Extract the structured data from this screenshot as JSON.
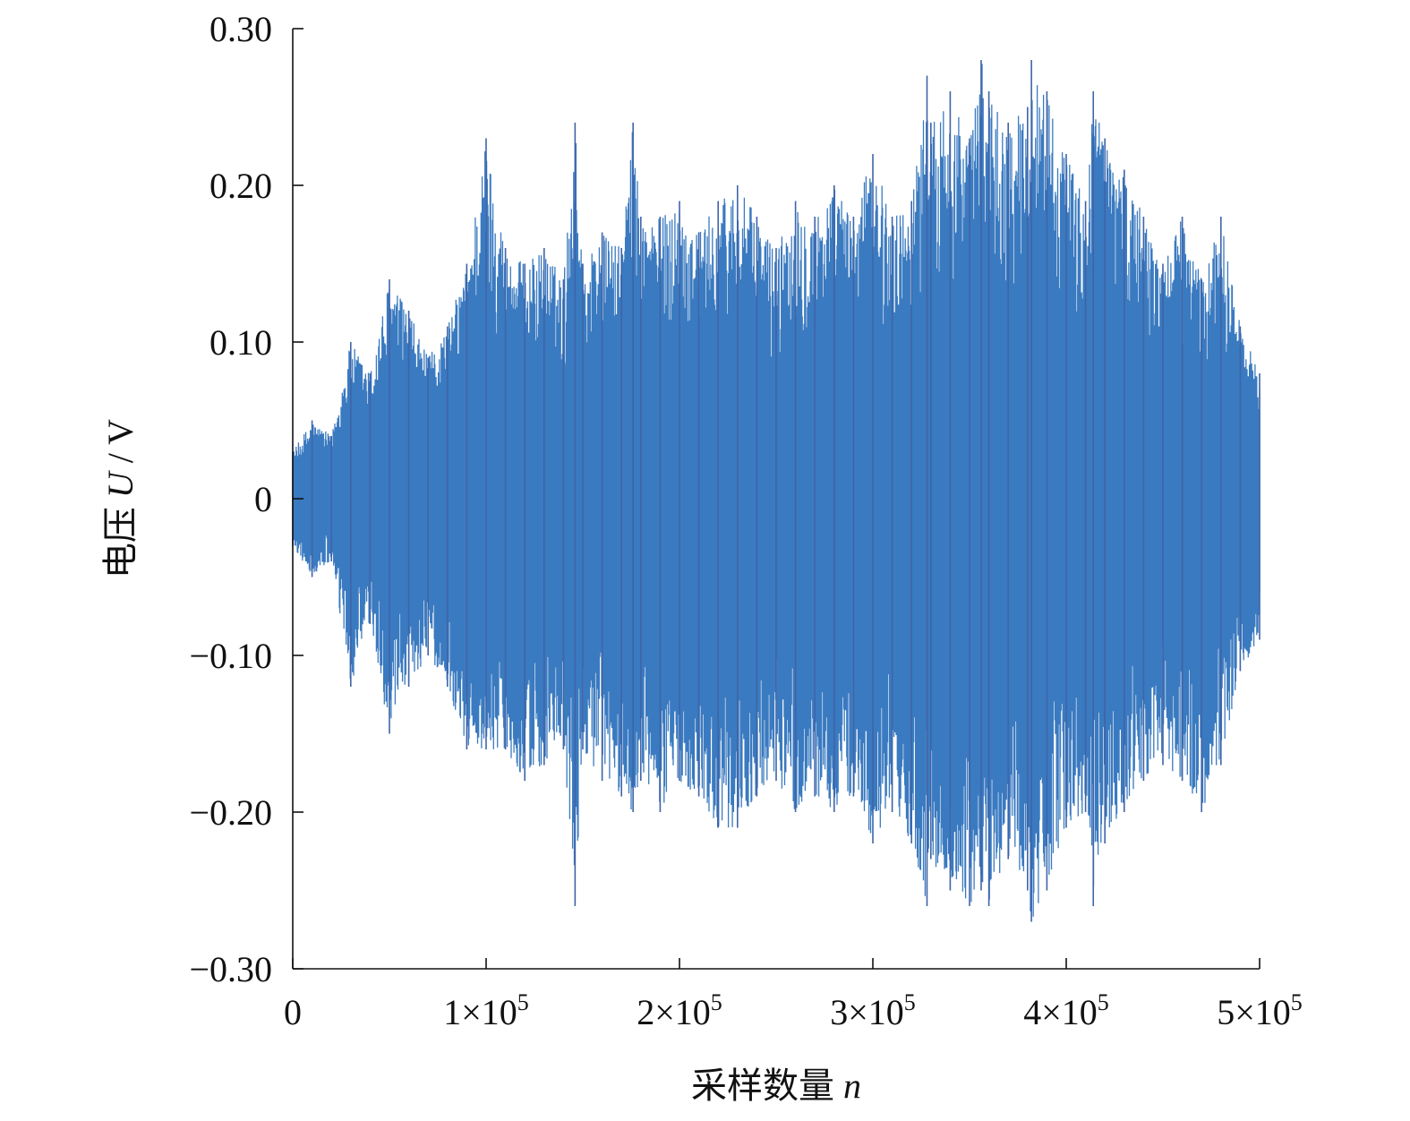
{
  "chart_data": {
    "type": "line",
    "title": "",
    "xlabel": {
      "prefix": "采样数量 ",
      "symbol": "n"
    },
    "ylabel": {
      "prefix": "电压 ",
      "symbol": "U",
      "suffix": " / V"
    },
    "xlim": [
      0,
      500000
    ],
    "ylim": [
      -0.3,
      0.3
    ],
    "x_ticks": [
      {
        "value": 0,
        "mant": "0",
        "exp": ""
      },
      {
        "value": 100000,
        "mant": "1×10",
        "exp": "5"
      },
      {
        "value": 200000,
        "mant": "2×10",
        "exp": "5"
      },
      {
        "value": 300000,
        "mant": "3×10",
        "exp": "5"
      },
      {
        "value": 400000,
        "mant": "4×10",
        "exp": "5"
      },
      {
        "value": 500000,
        "mant": "5×10",
        "exp": "5"
      }
    ],
    "y_ticks": [
      {
        "value": 0.3,
        "label": "0.30"
      },
      {
        "value": 0.2,
        "label": "0.20"
      },
      {
        "value": 0.1,
        "label": "0.10"
      },
      {
        "value": 0,
        "label": "0"
      },
      {
        "value": -0.1,
        "label": "−0.10"
      },
      {
        "value": -0.2,
        "label": "−0.20"
      },
      {
        "value": -0.3,
        "label": "−0.30"
      }
    ],
    "grid": false,
    "series": [
      {
        "color": "#3a7ac0",
        "x": [
          0,
          10000,
          20000,
          30000,
          40000,
          50000,
          60000,
          70000,
          80000,
          90000,
          100000,
          110000,
          120000,
          130000,
          140000,
          146000,
          150000,
          160000,
          170000,
          176000,
          180000,
          190000,
          200000,
          210000,
          220000,
          230000,
          240000,
          250000,
          260000,
          270000,
          280000,
          290000,
          300000,
          310000,
          320000,
          328000,
          330000,
          340000,
          350000,
          356000,
          360000,
          370000,
          380000,
          382000,
          390000,
          400000,
          410000,
          414000,
          420000,
          430000,
          440000,
          450000,
          460000,
          470000,
          480000,
          490000,
          500000
        ],
        "upper": [
          0.03,
          0.05,
          0.04,
          0.1,
          0.08,
          0.14,
          0.12,
          0.09,
          0.11,
          0.15,
          0.23,
          0.16,
          0.15,
          0.16,
          0.14,
          0.24,
          0.15,
          0.17,
          0.16,
          0.24,
          0.18,
          0.18,
          0.19,
          0.17,
          0.19,
          0.2,
          0.18,
          0.16,
          0.19,
          0.18,
          0.2,
          0.18,
          0.22,
          0.18,
          0.19,
          0.27,
          0.24,
          0.26,
          0.23,
          0.28,
          0.26,
          0.24,
          0.25,
          0.28,
          0.26,
          0.22,
          0.19,
          0.26,
          0.23,
          0.21,
          0.18,
          0.15,
          0.18,
          0.14,
          0.18,
          0.11,
          0.08
        ],
        "lower": [
          -0.03,
          -0.05,
          -0.04,
          -0.12,
          -0.08,
          -0.15,
          -0.12,
          -0.1,
          -0.12,
          -0.16,
          -0.16,
          -0.16,
          -0.18,
          -0.17,
          -0.16,
          -0.26,
          -0.16,
          -0.18,
          -0.19,
          -0.2,
          -0.18,
          -0.2,
          -0.18,
          -0.19,
          -0.21,
          -0.21,
          -0.19,
          -0.18,
          -0.2,
          -0.19,
          -0.2,
          -0.19,
          -0.22,
          -0.2,
          -0.22,
          -0.26,
          -0.23,
          -0.25,
          -0.26,
          -0.25,
          -0.26,
          -0.23,
          -0.25,
          -0.27,
          -0.25,
          -0.21,
          -0.2,
          -0.26,
          -0.22,
          -0.2,
          -0.18,
          -0.17,
          -0.18,
          -0.2,
          -0.17,
          -0.11,
          -0.09
        ]
      }
    ]
  }
}
